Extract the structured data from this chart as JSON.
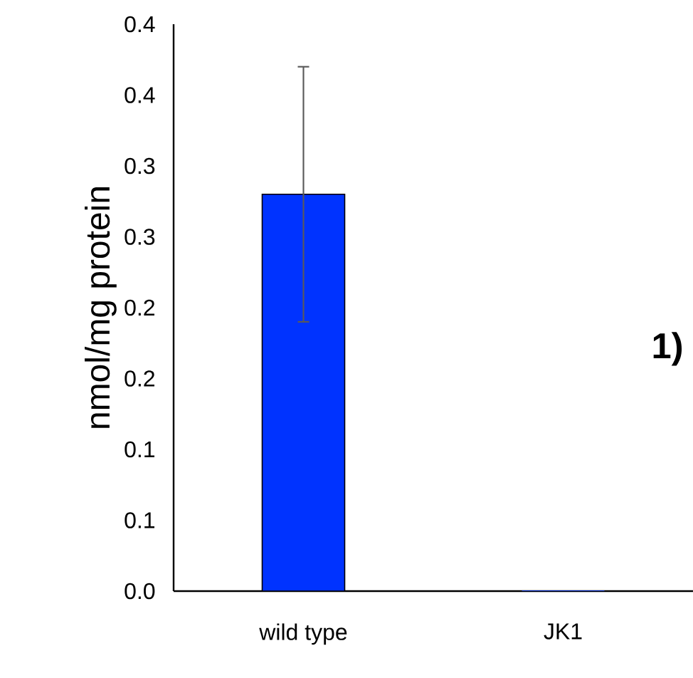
{
  "chart_data": {
    "type": "bar",
    "ylabel": "nmol/mg protein",
    "categories": [
      "wild type",
      "JK1"
    ],
    "values": [
      0.28,
      0
    ],
    "color": "#0033ff",
    "errors": [
      [
        0.19,
        0.37
      ],
      null
    ],
    "ylim": [
      0,
      0.4
    ],
    "yticks": [
      {
        "value": 0,
        "label": "0.0"
      },
      {
        "value": 0.05,
        "label": "0.1"
      },
      {
        "value": 0.1,
        "label": "0.1"
      },
      {
        "value": 0.15,
        "label": "0.2"
      },
      {
        "value": 0.2,
        "label": "0.2"
      },
      {
        "value": 0.25,
        "label": "0.3"
      },
      {
        "value": 0.3,
        "label": "0.3"
      },
      {
        "value": 0.35,
        "label": "0.4"
      },
      {
        "value": 0.4,
        "label": "0.4"
      }
    ],
    "annotations": [
      "1)"
    ]
  }
}
